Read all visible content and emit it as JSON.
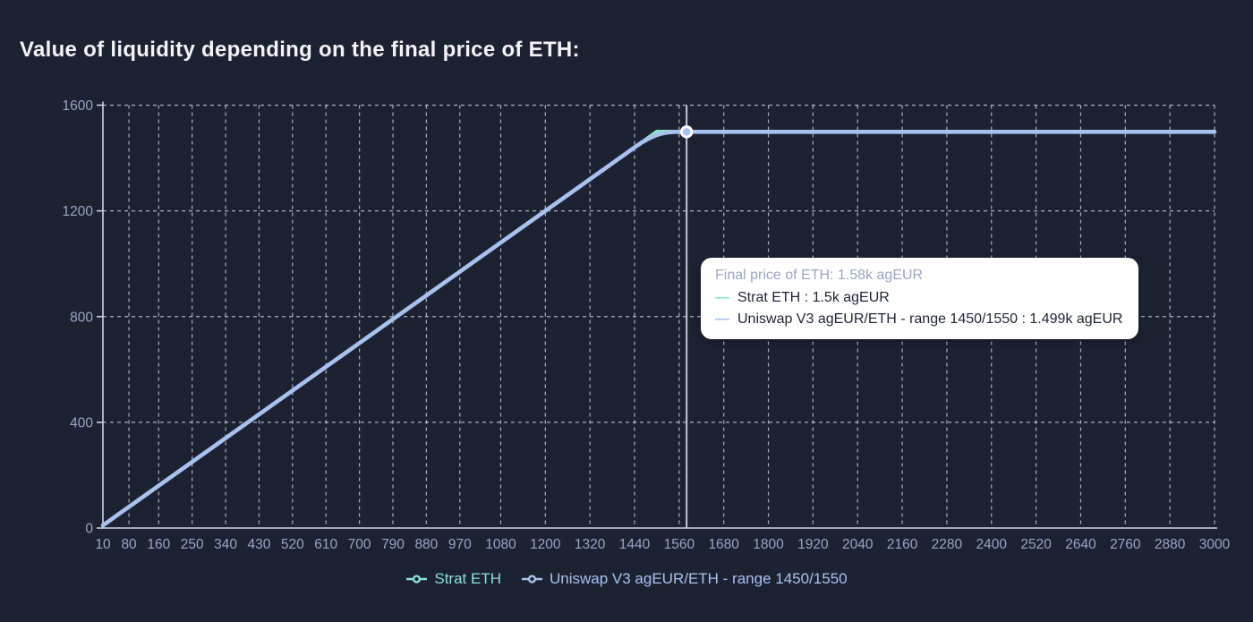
{
  "title": "Value of liquidity depending on the final price of ETH:",
  "colors": {
    "background": "#1d2233",
    "title_text": "#f3f2f6",
    "axis_label": "#9aa5c4",
    "grid": "#e3e7f0",
    "axis": "#cbd1df",
    "hover_line": "#c4cad9",
    "marker_fill": "#a8c2ee",
    "marker_ring": "#ffffff",
    "tooltip_bg": "#ffffff",
    "tooltip_header_text": "#9aa6c3",
    "tooltip_item_text": "#1e2336",
    "strat_eth": "#89e3cb",
    "uniswap": "#a8c2ee"
  },
  "chart_data": {
    "type": "line",
    "title": "Value of liquidity depending on the final price of ETH:",
    "xlabel": "",
    "ylabel": "",
    "xlim": [
      10,
      3000
    ],
    "ylim": [
      0,
      1600
    ],
    "grid": true,
    "legend_position": "bottom",
    "x_ticks": [
      10,
      80,
      160,
      250,
      340,
      430,
      520,
      610,
      700,
      790,
      880,
      970,
      1080,
      1200,
      1320,
      1440,
      1560,
      1680,
      1800,
      1920,
      2040,
      2160,
      2280,
      2400,
      2520,
      2640,
      2760,
      2880,
      3000
    ],
    "y_ticks": [
      0,
      400,
      800,
      1200,
      1600
    ],
    "series": [
      {
        "name": "Strat ETH",
        "color": "#89e3cb",
        "points": [
          [
            10,
            10
          ],
          [
            1450,
            1450
          ],
          [
            1500,
            1500
          ],
          [
            3000,
            1500
          ]
        ]
      },
      {
        "name": "Uniswap V3 agEUR/ETH - range 1450/1550",
        "color": "#a8c2ee",
        "points": [
          [
            10,
            10
          ],
          [
            1450,
            1450
          ],
          [
            1460,
            1459
          ],
          [
            1475,
            1471
          ],
          [
            1485,
            1478
          ],
          [
            1500,
            1487
          ],
          [
            1515,
            1493
          ],
          [
            1530,
            1497
          ],
          [
            1550,
            1499
          ],
          [
            1580,
            1499
          ],
          [
            3000,
            1499
          ]
        ]
      }
    ],
    "hover_point": {
      "x": 1580,
      "y": 1499
    }
  },
  "tooltip": {
    "header": "Final price of ETH: 1.58k agEUR",
    "items": [
      {
        "marker": "—",
        "label": "Strat ETH : 1.5k agEUR",
        "color": "#89e3cb"
      },
      {
        "marker": "—",
        "label": "Uniswap V3 agEUR/ETH - range 1450/1550 : 1.499k agEUR",
        "color": "#a8c2ee"
      }
    ]
  },
  "legend": {
    "items": [
      {
        "label": "Strat ETH",
        "color": "#89e3cb"
      },
      {
        "label": "Uniswap V3 agEUR/ETH - range 1450/1550",
        "color": "#a8c2ee"
      }
    ]
  }
}
